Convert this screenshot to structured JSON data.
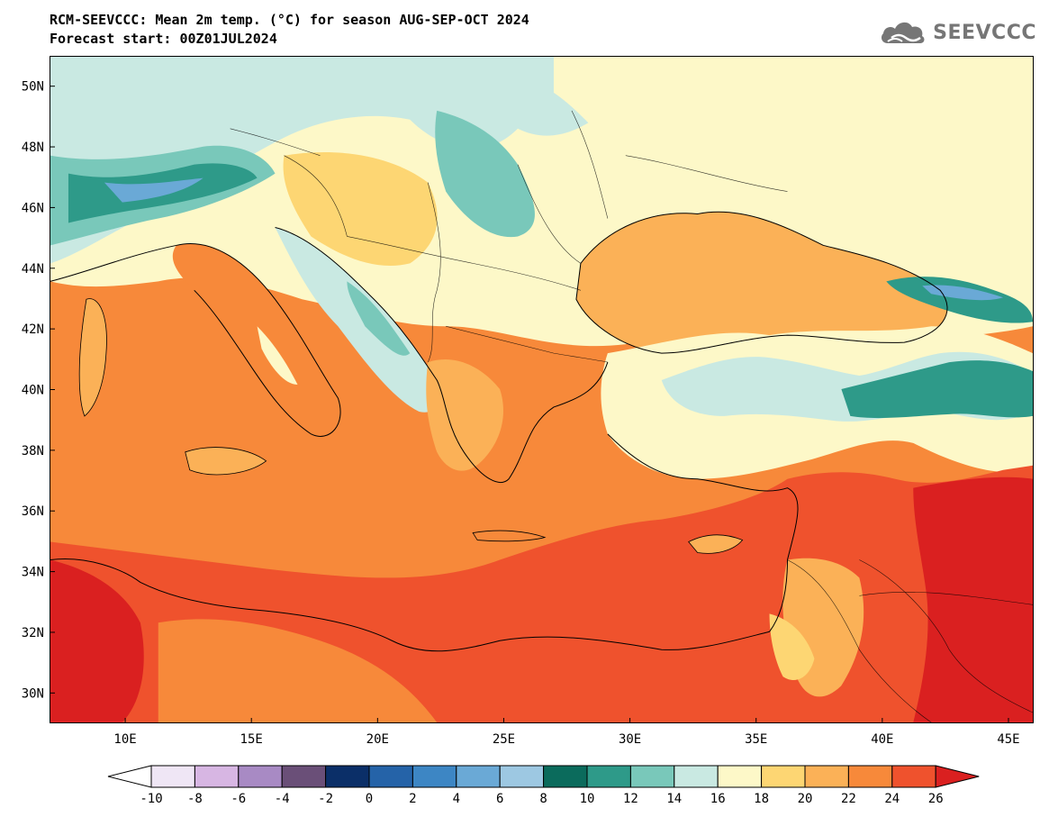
{
  "header": {
    "title_line1": "RCM-SEEVCCC: Mean 2m temp. (°C) for season AUG-SEP-OCT 2024",
    "title_line2": "Forecast start: 00Z01JUL2024"
  },
  "brand": {
    "name": "SEEVCCC",
    "icon": "cloud-logo-icon",
    "color": "#767676"
  },
  "map": {
    "lon_range": [
      7,
      46
    ],
    "lat_range": [
      29,
      51
    ],
    "lat_ticks": [
      "50N",
      "48N",
      "46N",
      "44N",
      "42N",
      "40N",
      "38N",
      "36N",
      "34N",
      "32N",
      "30N"
    ],
    "lon_ticks": [
      "10E",
      "15E",
      "20E",
      "25E",
      "30E",
      "35E",
      "40E",
      "45E"
    ]
  },
  "colorbar": {
    "labels": [
      "-10",
      "-8",
      "-6",
      "-4",
      "-2",
      "0",
      "2",
      "4",
      "6",
      "8",
      "10",
      "12",
      "14",
      "16",
      "18",
      "20",
      "22",
      "24",
      "26"
    ],
    "colors": [
      "#efe6f5",
      "#d7b6e3",
      "#a88ac4",
      "#6a4f78",
      "#0b2f68",
      "#2563a8",
      "#3d86c4",
      "#6aa9d6",
      "#9dc8e2",
      "#0b6b5c",
      "#2e9a89",
      "#79c8ba",
      "#c9e9e2",
      "#fdf8c8",
      "#fdd673",
      "#fbb157",
      "#f7893a",
      "#ef522d"
    ],
    "under_color": "#ffffff",
    "over_color": "#da2020"
  }
}
